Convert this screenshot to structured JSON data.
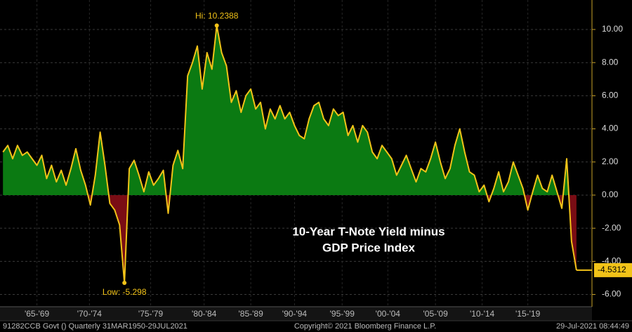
{
  "chart_data": {
    "type": "area",
    "annotation": [
      "10-Year T-Note Yield minus",
      "GDP Price Index"
    ],
    "hi_label": "Hi: 10.2388",
    "low_label": "Low: -5.298",
    "footer": {
      "left": "91282CCB Govt ()  Quarterly 31MAR1950-29JUL2021",
      "center": "Copyright© 2021 Bloomberg Finance L.P.",
      "right": "29-Jul-2021 08:44:49"
    },
    "xlim": [
      1962.2,
      2023.1
    ],
    "xticks": [
      {
        "value": 1966,
        "label": "'65-'69"
      },
      {
        "value": 1971.4,
        "label": "'70-'74"
      },
      {
        "value": 1977.7,
        "label": "'75-'79"
      },
      {
        "value": 1983.2,
        "label": "'80-'84"
      },
      {
        "value": 1988,
        "label": "'85-'89"
      },
      {
        "value": 1992.5,
        "label": "'90-'94"
      },
      {
        "value": 1997.4,
        "label": "'95-'99"
      },
      {
        "value": 2002.1,
        "label": "'00-'04"
      },
      {
        "value": 2007,
        "label": "'05-'09"
      },
      {
        "value": 2011.8,
        "label": "'10-'14"
      },
      {
        "value": 2016.5,
        "label": "'15-'19"
      }
    ],
    "ylim": [
      -6.74,
      11.78
    ],
    "yticks": [
      {
        "value": 10,
        "label": "10.00"
      },
      {
        "value": 8,
        "label": "8.00"
      },
      {
        "value": 6,
        "label": "6.00"
      },
      {
        "value": 4,
        "label": "4.00"
      },
      {
        "value": 2,
        "label": "2.00"
      },
      {
        "value": 0,
        "label": "0.00"
      },
      {
        "value": -2,
        "label": "-2.00"
      },
      {
        "value": -4,
        "label": "-4.00"
      },
      {
        "value": -6,
        "label": "-6.00"
      }
    ],
    "grid": true,
    "series": [
      {
        "color": "#f2c318",
        "positive_color": "#0b7a12",
        "negative_color": "#7a0d14",
        "x": [
          1962.5,
          1963,
          1963.5,
          1964,
          1964.5,
          1965,
          1965.5,
          1966,
          1966.5,
          1967,
          1967.5,
          1968,
          1968.5,
          1969,
          1969.5,
          1970,
          1970.5,
          1971,
          1971.5,
          1972,
          1972.5,
          1973,
          1973.5,
          1974,
          1974.5,
          1975,
          1975.5,
          1976,
          1976.5,
          1977,
          1977.5,
          1978,
          1978.5,
          1979,
          1979.5,
          1980,
          1980.5,
          1981,
          1981.5,
          1982,
          1982.5,
          1983,
          1983.5,
          1984,
          1984.5,
          1985,
          1985.5,
          1986,
          1986.5,
          1987,
          1987.5,
          1988,
          1988.5,
          1989,
          1989.5,
          1990,
          1990.5,
          1991,
          1991.5,
          1992,
          1992.5,
          1993,
          1993.5,
          1994,
          1994.5,
          1995,
          1995.5,
          1996,
          1996.5,
          1997,
          1997.5,
          1998,
          1998.5,
          1999,
          1999.5,
          2000,
          2000.5,
          2001,
          2001.5,
          2002,
          2002.5,
          2003,
          2003.5,
          2004,
          2004.5,
          2005,
          2005.5,
          2006,
          2006.5,
          2007,
          2007.5,
          2008,
          2008.5,
          2009,
          2009.5,
          2010,
          2010.5,
          2011,
          2011.5,
          2012,
          2012.5,
          2013,
          2013.5,
          2014,
          2014.5,
          2015,
          2015.5,
          2016,
          2016.5,
          2017,
          2017.5,
          2018,
          2018.5,
          2019,
          2019.5,
          2020,
          2020.5,
          2021,
          2021.5
        ],
        "values": [
          2.6,
          3.0,
          2.2,
          3.0,
          2.4,
          2.6,
          2.2,
          1.8,
          2.4,
          1.0,
          1.8,
          0.8,
          1.5,
          0.6,
          1.6,
          2.8,
          1.5,
          0.6,
          -0.6,
          1.2,
          3.8,
          1.8,
          -0.5,
          -0.9,
          -1.8,
          -5.298,
          1.6,
          2.1,
          1.2,
          0.2,
          1.4,
          0.6,
          1.0,
          1.5,
          -1.1,
          1.8,
          2.7,
          1.6,
          7.2,
          8.0,
          9.0,
          6.4,
          8.6,
          7.6,
          10.2388,
          8.6,
          7.8,
          5.6,
          6.3,
          5.0,
          6.0,
          6.4,
          5.2,
          5.6,
          4.0,
          5.2,
          4.6,
          5.4,
          4.6,
          5.0,
          4.2,
          3.6,
          3.4,
          4.6,
          5.4,
          5.6,
          4.6,
          4.2,
          5.2,
          4.8,
          5.0,
          3.6,
          4.2,
          3.2,
          4.2,
          3.8,
          2.6,
          2.2,
          3.0,
          2.6,
          2.2,
          1.2,
          1.8,
          2.4,
          1.6,
          0.8,
          1.6,
          1.4,
          2.2,
          3.2,
          2.0,
          1.0,
          1.6,
          3.0,
          4.0,
          2.6,
          1.4,
          1.2,
          0.2,
          0.6,
          -0.4,
          0.4,
          1.4,
          0.2,
          0.8,
          2.0,
          1.2,
          0.4,
          -0.9,
          0.2,
          1.2,
          0.4,
          0.2,
          1.2,
          0.2,
          -0.8,
          2.2,
          -2.8,
          -4.5312
        ]
      }
    ]
  }
}
